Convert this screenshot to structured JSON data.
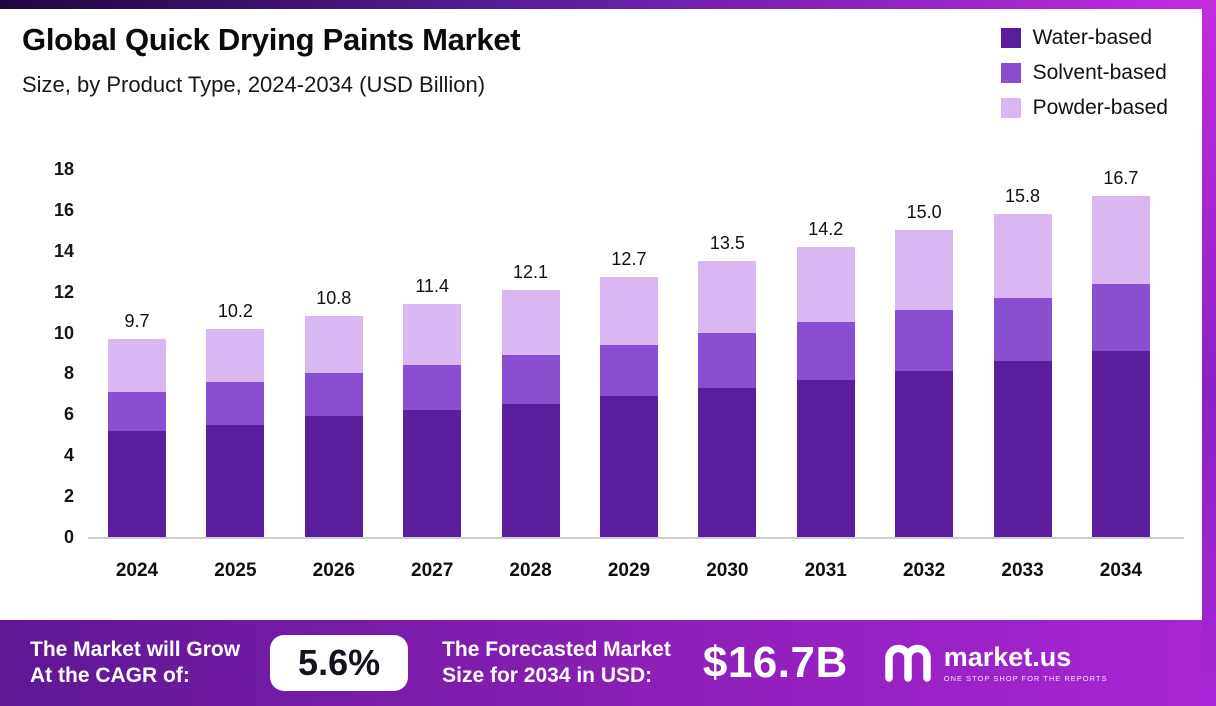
{
  "header": {
    "title": "Global Quick Drying Paints Market",
    "subtitle": "Size, by Product Type, 2024-2034 (USD Billion)"
  },
  "legend": [
    {
      "label": "Water-based",
      "color": "#5a1e9d"
    },
    {
      "label": "Solvent-based",
      "color": "#8a4fd0"
    },
    {
      "label": "Powder-based",
      "color": "#d9b7f2"
    }
  ],
  "chart_data": {
    "type": "bar",
    "stacked": true,
    "title": "Global Quick Drying Paints Market",
    "subtitle": "Size, by Product Type, 2024-2034 (USD Billion)",
    "categories": [
      "2024",
      "2025",
      "2026",
      "2027",
      "2028",
      "2029",
      "2030",
      "2031",
      "2032",
      "2033",
      "2034"
    ],
    "series": [
      {
        "name": "Water-based",
        "color": "#5a1e9d",
        "values": [
          5.2,
          5.5,
          5.9,
          6.2,
          6.5,
          6.9,
          7.3,
          7.7,
          8.1,
          8.6,
          9.1
        ]
      },
      {
        "name": "Solvent-based",
        "color": "#8a4fd0",
        "values": [
          1.9,
          2.1,
          2.1,
          2.2,
          2.4,
          2.5,
          2.7,
          2.8,
          3.0,
          3.1,
          3.3
        ]
      },
      {
        "name": "Powder-based",
        "color": "#d9b7f2",
        "values": [
          2.6,
          2.6,
          2.8,
          3.0,
          3.2,
          3.3,
          3.5,
          3.7,
          3.9,
          4.1,
          4.3
        ]
      }
    ],
    "totals": [
      "9.7",
      "10.2",
      "10.8",
      "11.4",
      "12.1",
      "12.7",
      "13.5",
      "14.2",
      "15.0",
      "15.8",
      "16.7"
    ],
    "ylim": [
      0,
      18
    ],
    "yticks": [
      0,
      2,
      4,
      6,
      8,
      10,
      12,
      14,
      16,
      18
    ],
    "grid": false,
    "legend_position": "top-right",
    "unit": "USD Billion"
  },
  "footer": {
    "cagr_label_line1": "The Market will Grow",
    "cagr_label_line2": "At the CAGR of:",
    "cagr_value": "5.6%",
    "forecast_label_line1": "The Forecasted Market",
    "forecast_label_line2": "Size for 2034 in USD:",
    "forecast_value": "$16.7B",
    "brand_name": "market.us",
    "brand_tagline": "ONE STOP SHOP FOR THE REPORTS"
  },
  "colors": {
    "footer_gradient_start": "#5f1794",
    "footer_gradient_end": "#a825d6"
  }
}
